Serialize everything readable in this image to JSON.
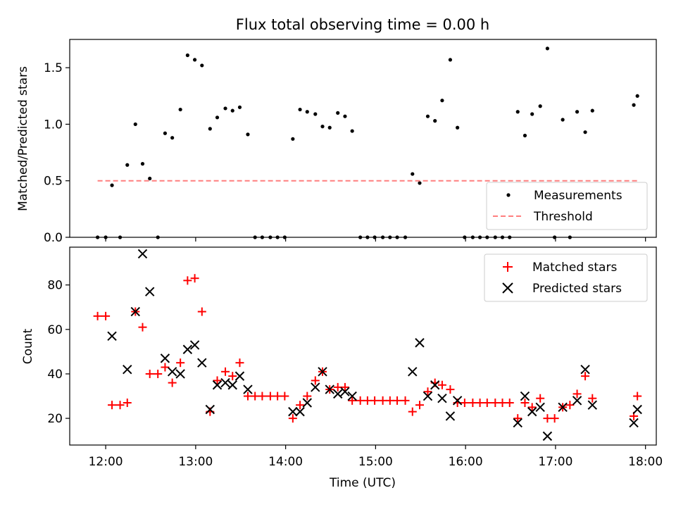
{
  "chart_data": {
    "title": "Flux total observing time = 0.00 h",
    "x_tick_labels": [
      "12:00",
      "13:00",
      "14:00",
      "15:00",
      "16:00",
      "17:00",
      "18:00"
    ],
    "x_tick_values": [
      12,
      13,
      14,
      15,
      16,
      17,
      18
    ],
    "xlim": [
      11.6,
      18.12
    ],
    "xlabel": "Time (UTC)",
    "panels": [
      {
        "type": "scatter",
        "ylabel": "Matched/Predicted stars",
        "ylim": [
          0,
          1.75
        ],
        "y_ticks": [
          0.0,
          0.5,
          1.0,
          1.5
        ],
        "y_tick_labels": [
          "0.0",
          "0.5",
          "1.0",
          "1.5"
        ],
        "legend_position": "lower-right",
        "series": [
          {
            "name": "Measurements",
            "marker": "dot",
            "color": "#000000",
            "x": [
              11.91,
              12.0,
              12.07,
              12.16,
              12.24,
              12.33,
              12.41,
              12.49,
              12.58,
              12.66,
              12.74,
              12.83,
              12.91,
              12.99,
              13.07,
              13.16,
              13.24,
              13.33,
              13.41,
              13.49,
              13.58,
              13.66,
              13.74,
              13.83,
              13.91,
              13.99,
              14.08,
              14.16,
              14.24,
              14.33,
              14.41,
              14.49,
              14.58,
              14.66,
              14.74,
              14.83,
              14.91,
              14.99,
              15.08,
              15.16,
              15.24,
              15.33,
              15.41,
              15.49,
              15.58,
              15.66,
              15.74,
              15.83,
              15.91,
              15.99,
              16.08,
              16.16,
              16.24,
              16.33,
              16.41,
              16.49,
              16.58,
              16.66,
              16.74,
              16.83,
              16.91,
              16.99,
              17.08,
              17.16,
              17.24,
              17.33,
              17.41,
              17.87,
              17.91
            ],
            "y": [
              0.0,
              0.0,
              0.46,
              0.0,
              0.64,
              1.0,
              0.65,
              0.52,
              0.0,
              0.92,
              0.88,
              1.13,
              1.61,
              1.57,
              1.52,
              0.96,
              1.06,
              1.14,
              1.12,
              1.15,
              0.91,
              0.0,
              0.0,
              0.0,
              0.0,
              0.0,
              0.87,
              1.13,
              1.11,
              1.09,
              0.98,
              0.97,
              1.1,
              1.07,
              0.94,
              0.0,
              0.0,
              0.0,
              0.0,
              0.0,
              0.0,
              0.0,
              0.56,
              0.48,
              1.07,
              1.03,
              1.21,
              1.57,
              0.97,
              0.0,
              0.0,
              0.0,
              0.0,
              0.0,
              0.0,
              0.0,
              1.11,
              0.9,
              1.09,
              1.16,
              1.67,
              0.0,
              1.04,
              0.0,
              1.11,
              0.93,
              1.12,
              1.17,
              1.25
            ]
          },
          {
            "name": "Threshold",
            "line": "dashed",
            "color": "#ff7f7f",
            "x": [
              11.91,
              17.91
            ],
            "y": [
              0.5,
              0.5
            ]
          }
        ]
      },
      {
        "type": "scatter",
        "ylabel": "Count",
        "ylim": [
          8,
          97
        ],
        "y_ticks": [
          20,
          40,
          60,
          80
        ],
        "y_tick_labels": [
          "20",
          "40",
          "60",
          "80"
        ],
        "legend_position": "upper-right",
        "series": [
          {
            "name": "Matched stars",
            "marker": "plus",
            "color": "#ff0000",
            "x": [
              11.91,
              12.0,
              12.07,
              12.16,
              12.24,
              12.33,
              12.41,
              12.49,
              12.58,
              12.66,
              12.74,
              12.83,
              12.91,
              12.99,
              13.07,
              13.16,
              13.24,
              13.33,
              13.41,
              13.49,
              13.58,
              13.66,
              13.74,
              13.83,
              13.91,
              13.99,
              14.08,
              14.16,
              14.24,
              14.33,
              14.41,
              14.49,
              14.58,
              14.66,
              14.74,
              14.83,
              14.91,
              14.99,
              15.08,
              15.16,
              15.24,
              15.33,
              15.41,
              15.49,
              15.58,
              15.66,
              15.74,
              15.83,
              15.91,
              15.99,
              16.08,
              16.16,
              16.24,
              16.33,
              16.41,
              16.49,
              16.58,
              16.66,
              16.74,
              16.83,
              16.91,
              16.99,
              17.08,
              17.16,
              17.24,
              17.33,
              17.41,
              17.87,
              17.91
            ],
            "y": [
              66,
              66,
              26,
              26,
              27,
              68,
              61,
              40,
              40,
              43,
              36,
              45,
              82,
              83,
              68,
              23,
              37,
              41,
              39,
              45,
              30,
              30,
              30,
              30,
              30,
              30,
              20,
              26,
              30,
              37,
              41,
              33,
              34,
              34,
              28,
              28,
              28,
              28,
              28,
              28,
              28,
              28,
              23,
              26,
              32,
              36,
              35,
              33,
              27,
              27,
              27,
              27,
              27,
              27,
              27,
              27,
              20,
              27,
              25,
              29,
              20,
              20,
              25,
              26,
              31,
              39,
              29,
              21,
              30
            ]
          },
          {
            "name": "Predicted stars",
            "marker": "x",
            "color": "#000000",
            "x": [
              12.07,
              12.24,
              12.33,
              12.41,
              12.49,
              12.66,
              12.74,
              12.83,
              12.91,
              12.99,
              13.07,
              13.16,
              13.24,
              13.33,
              13.41,
              13.49,
              13.58,
              14.08,
              14.16,
              14.24,
              14.33,
              14.41,
              14.49,
              14.58,
              14.66,
              14.74,
              15.41,
              15.49,
              15.58,
              15.66,
              15.74,
              15.83,
              15.91,
              16.58,
              16.66,
              16.74,
              16.83,
              16.91,
              17.08,
              17.24,
              17.33,
              17.41,
              17.87,
              17.91
            ],
            "y": [
              57,
              42,
              68,
              94,
              77,
              47,
              41,
              40,
              51,
              53,
              45,
              24,
              35,
              36,
              35,
              39,
              33,
              23,
              23,
              27,
              34,
              41,
              33,
              31,
              32,
              30,
              41,
              54,
              30,
              35,
              29,
              21,
              28,
              18,
              30,
              23,
              25,
              12,
              25,
              28,
              42,
              26,
              18,
              24
            ]
          }
        ]
      }
    ]
  }
}
